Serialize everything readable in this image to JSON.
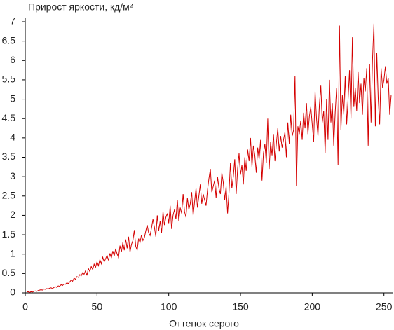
{
  "chart_data": {
    "type": "line",
    "title": "Прирост яркости, кд/м²",
    "xlabel": "Оттенок серого",
    "color": "#d40000",
    "x": [
      1,
      2,
      3,
      4,
      5,
      6,
      7,
      8,
      9,
      10,
      11,
      12,
      13,
      14,
      15,
      16,
      17,
      18,
      19,
      20,
      21,
      22,
      23,
      24,
      25,
      26,
      27,
      28,
      29,
      30,
      31,
      32,
      33,
      34,
      35,
      36,
      37,
      38,
      39,
      40,
      41,
      42,
      43,
      44,
      45,
      46,
      47,
      48,
      49,
      50,
      51,
      52,
      53,
      54,
      55,
      56,
      57,
      58,
      59,
      60,
      61,
      62,
      63,
      64,
      65,
      66,
      67,
      68,
      69,
      70,
      71,
      72,
      73,
      74,
      75,
      76,
      77,
      78,
      79,
      80,
      81,
      82,
      83,
      84,
      85,
      86,
      87,
      88,
      89,
      90,
      91,
      92,
      93,
      94,
      95,
      96,
      97,
      98,
      99,
      100,
      101,
      102,
      103,
      104,
      105,
      106,
      107,
      108,
      109,
      110,
      111,
      112,
      113,
      114,
      115,
      116,
      117,
      118,
      119,
      120,
      121,
      122,
      123,
      124,
      125,
      126,
      127,
      128,
      129,
      130,
      131,
      132,
      133,
      134,
      135,
      136,
      137,
      138,
      139,
      140,
      141,
      142,
      143,
      144,
      145,
      146,
      147,
      148,
      149,
      150,
      151,
      152,
      153,
      154,
      155,
      156,
      157,
      158,
      159,
      160,
      161,
      162,
      163,
      164,
      165,
      166,
      167,
      168,
      169,
      170,
      171,
      172,
      173,
      174,
      175,
      176,
      177,
      178,
      179,
      180,
      181,
      182,
      183,
      184,
      185,
      186,
      187,
      188,
      189,
      190,
      191,
      192,
      193,
      194,
      195,
      196,
      197,
      198,
      199,
      200,
      201,
      202,
      203,
      204,
      205,
      206,
      207,
      208,
      209,
      210,
      211,
      212,
      213,
      214,
      215,
      216,
      217,
      218,
      219,
      220,
      221,
      222,
      223,
      224,
      225,
      226,
      227,
      228,
      229,
      230,
      231,
      232,
      233,
      234,
      235,
      236,
      237,
      238,
      239,
      240,
      241,
      242,
      243,
      244,
      245,
      246,
      247,
      248,
      249,
      250,
      251,
      252,
      253,
      254,
      255
    ],
    "values": [
      0.02,
      0.03,
      0.01,
      0.03,
      0.02,
      0.04,
      0.05,
      0.04,
      0.06,
      0.07,
      0.08,
      0.07,
      0.1,
      0.09,
      0.11,
      0.1,
      0.12,
      0.13,
      0.11,
      0.14,
      0.16,
      0.14,
      0.18,
      0.17,
      0.21,
      0.19,
      0.23,
      0.22,
      0.26,
      0.24,
      0.28,
      0.33,
      0.3,
      0.38,
      0.35,
      0.42,
      0.4,
      0.47,
      0.44,
      0.52,
      0.48,
      0.57,
      0.45,
      0.63,
      0.55,
      0.68,
      0.6,
      0.74,
      0.66,
      0.8,
      0.7,
      0.86,
      0.75,
      0.92,
      0.8,
      0.88,
      0.97,
      0.84,
      1.02,
      0.9,
      1.08,
      0.95,
      1.14,
      1.0,
      0.92,
      1.22,
      1.05,
      1.3,
      1.1,
      1.38,
      1.15,
      1.45,
      1.05,
      1.25,
      1.35,
      1.62,
      1.2,
      1.1,
      1.4,
      1.3,
      1.5,
      1.35,
      1.42,
      1.6,
      1.75,
      1.55,
      1.48,
      1.68,
      1.9,
      1.7,
      1.45,
      2.0,
      1.6,
      1.85,
      1.55,
      2.1,
      1.75,
      1.95,
      2.05,
      1.8,
      2.25,
      1.65,
      2.0,
      2.15,
      1.9,
      2.4,
      1.85,
      2.2,
      2.05,
      2.55,
      2.1,
      1.95,
      2.45,
      2.15,
      2.3,
      2.6,
      2.0,
      2.35,
      2.7,
      2.2,
      2.5,
      2.8,
      2.3,
      2.55,
      2.4,
      2.25,
      2.65,
      2.95,
      3.2,
      2.6,
      2.75,
      2.9,
      2.45,
      3.0,
      2.7,
      2.55,
      3.1,
      2.85,
      2.4,
      2.75,
      2.05,
      2.6,
      3.35,
      2.7,
      3.0,
      3.45,
      2.55,
      3.2,
      3.6,
      3.05,
      3.3,
      2.8,
      3.5,
      3.15,
      3.7,
      3.4,
      4.0,
      3.25,
      3.8,
      3.55,
      3.1,
      3.75,
      3.45,
      3.95,
      2.9,
      3.6,
      3.85,
      3.35,
      4.5,
      3.2,
      3.9,
      3.55,
      4.1,
      3.4,
      3.85,
      4.25,
      3.65,
      4.05,
      3.75,
      3.95,
      4.15,
      3.5,
      4.4,
      3.85,
      4.6,
      4.05,
      4.2,
      5.6,
      2.75,
      4.3,
      4.1,
      4.45,
      3.95,
      4.65,
      4.25,
      4.9,
      4.1,
      4.55,
      4.8,
      4.35,
      3.9,
      5.2,
      4.5,
      4.05,
      4.85,
      5.35,
      4.4,
      4.7,
      3.6,
      5.0,
      3.95,
      5.5,
      4.4,
      4.9,
      3.8,
      4.65,
      5.3,
      3.3,
      6.9,
      4.2,
      5.1,
      4.6,
      5.6,
      4.35,
      5.0,
      5.75,
      4.5,
      6.6,
      4.8,
      5.3,
      4.7,
      5.7,
      4.9,
      5.4,
      4.6,
      5.55,
      5.2,
      5.8,
      3.8,
      5.9,
      4.4,
      6.0,
      6.95,
      4.3,
      6.2,
      5.0,
      4.35,
      5.8,
      5.3,
      5.5,
      5.85,
      5.4,
      5.55,
      4.6,
      5.1
    ],
    "xlim": [
      0,
      256
    ],
    "xticks": [
      0,
      50,
      100,
      150,
      200,
      250
    ],
    "ylim": [
      0,
      7
    ],
    "yticks": [
      0,
      0.5,
      1,
      1.5,
      2,
      2.5,
      3,
      3.5,
      4,
      4.5,
      5,
      5.5,
      6,
      6.5,
      7
    ],
    "grid": false
  }
}
